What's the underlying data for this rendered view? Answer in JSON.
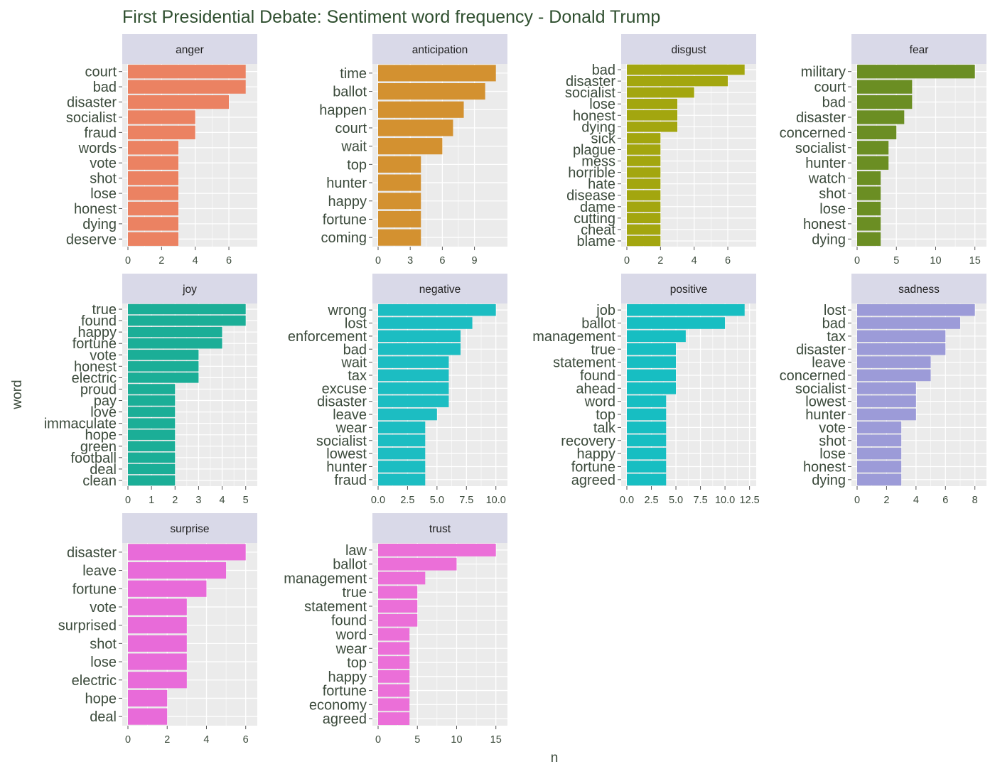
{
  "chart_data": {
    "type": "bar",
    "orientation": "horizontal",
    "title": "First Presidential Debate: Sentiment word frequency - Donald Trump",
    "xlabel": "n",
    "ylabel": "word",
    "grid": true,
    "facets": [
      {
        "name": "anger",
        "color": "#EB8262",
        "xlim": [
          0,
          7.35
        ],
        "ticks": [
          0,
          2,
          4,
          6
        ],
        "tick_labels": [
          "0",
          "2",
          "4",
          "6"
        ],
        "categories": [
          "court",
          "bad",
          "disaster",
          "socialist",
          "fraud",
          "words",
          "vote",
          "shot",
          "lose",
          "honest",
          "dying",
          "deserve"
        ],
        "values": [
          7,
          7,
          6,
          4,
          4,
          3,
          3,
          3,
          3,
          3,
          3,
          3
        ]
      },
      {
        "name": "anticipation",
        "color": "#D39130",
        "xlim": [
          0,
          11.55
        ],
        "ticks": [
          0,
          3,
          6,
          9
        ],
        "tick_labels": [
          "0",
          "3",
          "6",
          "9"
        ],
        "categories": [
          "time",
          "ballot",
          "happen",
          "court",
          "wait",
          "top",
          "hunter",
          "happy",
          "fortune",
          "coming"
        ],
        "values": [
          11,
          10,
          8,
          7,
          6,
          4,
          4,
          4,
          4,
          4
        ]
      },
      {
        "name": "disgust",
        "color": "#A3A60F",
        "xlim": [
          0,
          7.35
        ],
        "ticks": [
          0,
          2,
          4,
          6
        ],
        "tick_labels": [
          "0",
          "2",
          "4",
          "6"
        ],
        "categories": [
          "bad",
          "disaster",
          "socialist",
          "lose",
          "honest",
          "dying",
          "sick",
          "plague",
          "mess",
          "horrible",
          "hate",
          "disease",
          "dame",
          "cutting",
          "cheat",
          "blame"
        ],
        "values": [
          7,
          6,
          4,
          3,
          3,
          3,
          2,
          2,
          2,
          2,
          2,
          2,
          2,
          2,
          2,
          2
        ]
      },
      {
        "name": "fear",
        "color": "#6B8E23",
        "xlim": [
          0,
          15.75
        ],
        "ticks": [
          0,
          5,
          10,
          15
        ],
        "tick_labels": [
          "0",
          "5",
          "10",
          "15"
        ],
        "categories": [
          "military",
          "court",
          "bad",
          "disaster",
          "concerned",
          "socialist",
          "hunter",
          "watch",
          "shot",
          "lose",
          "honest",
          "dying"
        ],
        "values": [
          15,
          7,
          7,
          6,
          5,
          4,
          4,
          3,
          3,
          3,
          3,
          3
        ]
      },
      {
        "name": "joy",
        "color": "#1BAE97",
        "xlim": [
          0,
          5.25
        ],
        "ticks": [
          0,
          1,
          2,
          3,
          4,
          5
        ],
        "tick_labels": [
          "0",
          "1",
          "2",
          "3",
          "4",
          "5"
        ],
        "categories": [
          "true",
          "found",
          "happy",
          "fortune",
          "vote",
          "honest",
          "electric",
          "proud",
          "pay",
          "love",
          "immaculate",
          "hope",
          "green",
          "football",
          "deal",
          "clean"
        ],
        "values": [
          5,
          5,
          4,
          4,
          3,
          3,
          3,
          2,
          2,
          2,
          2,
          2,
          2,
          2,
          2,
          2
        ]
      },
      {
        "name": "negative",
        "color": "#1CBDC2",
        "xlim": [
          0,
          10.5
        ],
        "ticks": [
          0,
          2.5,
          5,
          7.5,
          10
        ],
        "tick_labels": [
          "0.0",
          "2.5",
          "5.0",
          "7.5",
          "10.0"
        ],
        "categories": [
          "wrong",
          "lost",
          "enforcement",
          "bad",
          "wait",
          "tax",
          "excuse",
          "disaster",
          "leave",
          "wear",
          "socialist",
          "lowest",
          "hunter",
          "fraud"
        ],
        "values": [
          10,
          8,
          7,
          7,
          6,
          6,
          6,
          6,
          5,
          4,
          4,
          4,
          4,
          4
        ]
      },
      {
        "name": "positive",
        "color": "#17BEC2",
        "xlim": [
          0,
          12.6
        ],
        "ticks": [
          0,
          2.5,
          5,
          7.5,
          10,
          12.5
        ],
        "tick_labels": [
          "0.0",
          "2.5",
          "5.0",
          "7.5",
          "10.0",
          "12.5"
        ],
        "categories": [
          "job",
          "ballot",
          "management",
          "true",
          "statement",
          "found",
          "ahead",
          "word",
          "top",
          "talk",
          "recovery",
          "happy",
          "fortune",
          "agreed"
        ],
        "values": [
          12,
          10,
          6,
          5,
          5,
          5,
          5,
          4,
          4,
          4,
          4,
          4,
          4,
          4
        ]
      },
      {
        "name": "sadness",
        "color": "#9C9BD8",
        "xlim": [
          0,
          8.4
        ],
        "ticks": [
          0,
          2,
          4,
          6,
          8
        ],
        "tick_labels": [
          "0",
          "2",
          "4",
          "6",
          "8"
        ],
        "categories": [
          "lost",
          "bad",
          "tax",
          "disaster",
          "leave",
          "concerned",
          "socialist",
          "lowest",
          "hunter",
          "vote",
          "shot",
          "lose",
          "honest",
          "dying"
        ],
        "values": [
          8,
          7,
          6,
          6,
          5,
          5,
          4,
          4,
          4,
          3,
          3,
          3,
          3,
          3
        ]
      },
      {
        "name": "surprise",
        "color": "#E86BD9",
        "xlim": [
          0,
          6.3
        ],
        "ticks": [
          0,
          2,
          4,
          6
        ],
        "tick_labels": [
          "0",
          "2",
          "4",
          "6"
        ],
        "categories": [
          "disaster",
          "leave",
          "fortune",
          "vote",
          "surprised",
          "shot",
          "lose",
          "electric",
          "hope",
          "deal"
        ],
        "values": [
          6,
          5,
          4,
          3,
          3,
          3,
          3,
          3,
          2,
          2
        ]
      },
      {
        "name": "trust",
        "color": "#EB6FD8",
        "xlim": [
          0,
          15.75
        ],
        "ticks": [
          0,
          5,
          10,
          15
        ],
        "tick_labels": [
          "0",
          "5",
          "10",
          "15"
        ],
        "categories": [
          "law",
          "ballot",
          "management",
          "true",
          "statement",
          "found",
          "word",
          "wear",
          "top",
          "happy",
          "fortune",
          "economy",
          "agreed"
        ],
        "values": [
          15,
          10,
          6,
          5,
          5,
          5,
          4,
          4,
          4,
          4,
          4,
          4,
          4
        ]
      }
    ]
  }
}
